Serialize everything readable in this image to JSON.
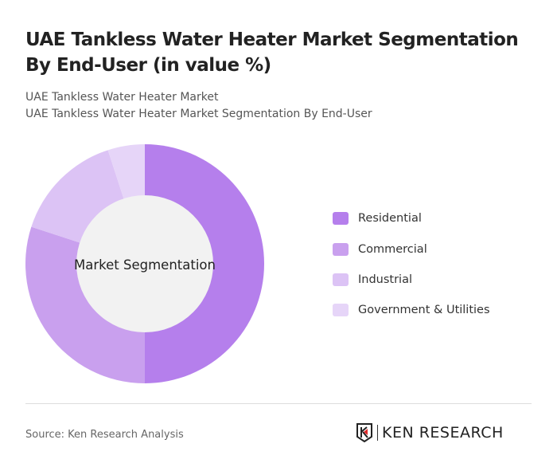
{
  "title": "UAE Tankless Water Heater Market Segmentation By End-User (in value %)",
  "subtitle1": "UAE Tankless Water Heater Market",
  "subtitle2": "UAE Tankless Water Heater Market Segmentation By End-User",
  "source": "Source: Ken Research Analysis",
  "logo_text": "KEN RESEARCH",
  "chart_data": {
    "type": "pie",
    "variant": "donut",
    "center_label": "Market Segmentation",
    "categories": [
      "Residential",
      "Commercial",
      "Industrial",
      "Government & Utilities"
    ],
    "values": [
      50,
      30,
      15,
      5
    ],
    "colors": [
      "#b57fec",
      "#c9a0ee",
      "#dcc3f5",
      "#e6d5f8"
    ],
    "center_fill": "#f2f2f2",
    "legend_position": "right"
  }
}
